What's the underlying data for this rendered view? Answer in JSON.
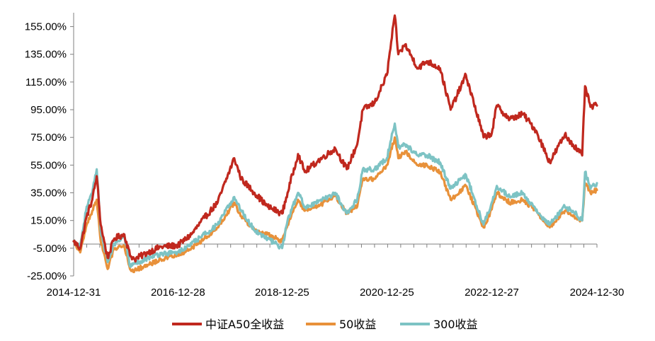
{
  "chart_data": {
    "type": "line",
    "title": "",
    "xlabel": "",
    "ylabel": "",
    "x_tick_labels": [
      "2014-12-31",
      "2016-12-28",
      "2018-12-25",
      "2020-12-25",
      "2022-12-27",
      "2024-12-30"
    ],
    "y_tick_labels": [
      "155.00%",
      "135.00%",
      "115.00%",
      "95.00%",
      "75.00%",
      "55.00%",
      "35.00%",
      "15.00%",
      "-5.00%",
      "-25.00%"
    ],
    "y_ticks": [
      155,
      135,
      115,
      95,
      75,
      55,
      35,
      15,
      -5,
      -25
    ],
    "ylim": [
      -25,
      165
    ],
    "xlim": [
      "2014-12-31",
      "2024-12-30"
    ],
    "grid": false,
    "legend_position": "bottom",
    "series": [
      {
        "name": "中证A50全收益",
        "color": "#C0281E",
        "points": [
          [
            "2014-12-31",
            0
          ],
          [
            "2015-02-15",
            -5
          ],
          [
            "2015-04-01",
            18
          ],
          [
            "2015-05-10",
            30
          ],
          [
            "2015-06-10",
            47
          ],
          [
            "2015-07-08",
            12
          ],
          [
            "2015-08-25",
            -12
          ],
          [
            "2015-10-10",
            2
          ],
          [
            "2015-12-20",
            5
          ],
          [
            "2016-01-28",
            -10
          ],
          [
            "2016-03-01",
            -13
          ],
          [
            "2016-06-01",
            -8
          ],
          [
            "2016-09-01",
            -4
          ],
          [
            "2016-12-28",
            -3
          ],
          [
            "2017-04-01",
            5
          ],
          [
            "2017-07-01",
            17
          ],
          [
            "2017-10-01",
            28
          ],
          [
            "2018-01-25",
            60
          ],
          [
            "2018-03-15",
            45
          ],
          [
            "2018-06-15",
            35
          ],
          [
            "2018-09-15",
            25
          ],
          [
            "2018-12-25",
            20
          ],
          [
            "2019-02-01",
            35
          ],
          [
            "2019-04-15",
            63
          ],
          [
            "2019-06-01",
            50
          ],
          [
            "2019-09-01",
            58
          ],
          [
            "2019-12-31",
            67
          ],
          [
            "2020-03-20",
            52
          ],
          [
            "2020-06-01",
            70
          ],
          [
            "2020-07-10",
            95
          ],
          [
            "2020-10-01",
            100
          ],
          [
            "2020-12-25",
            120
          ],
          [
            "2021-02-18",
            163
          ],
          [
            "2021-03-15",
            135
          ],
          [
            "2021-05-01",
            142
          ],
          [
            "2021-07-30",
            125
          ],
          [
            "2021-10-01",
            130
          ],
          [
            "2021-12-31",
            125
          ],
          [
            "2022-03-15",
            95
          ],
          [
            "2022-06-30",
            120
          ],
          [
            "2022-10-31",
            75
          ],
          [
            "2022-12-27",
            78
          ],
          [
            "2023-01-31",
            98
          ],
          [
            "2023-05-01",
            88
          ],
          [
            "2023-08-01",
            92
          ],
          [
            "2023-10-31",
            80
          ],
          [
            "2024-02-05",
            57
          ],
          [
            "2024-05-20",
            77
          ],
          [
            "2024-07-15",
            70
          ],
          [
            "2024-09-18",
            62
          ],
          [
            "2024-10-08",
            112
          ],
          [
            "2024-11-15",
            97
          ],
          [
            "2024-12-30",
            98
          ]
        ]
      },
      {
        "name": "50收益",
        "color": "#E8913A",
        "points": [
          [
            "2014-12-31",
            0
          ],
          [
            "2015-02-15",
            -8
          ],
          [
            "2015-04-01",
            12
          ],
          [
            "2015-05-10",
            22
          ],
          [
            "2015-06-10",
            30
          ],
          [
            "2015-07-08",
            0
          ],
          [
            "2015-08-25",
            -20
          ],
          [
            "2015-10-10",
            -5
          ],
          [
            "2015-12-20",
            -3
          ],
          [
            "2016-01-28",
            -20
          ],
          [
            "2016-03-01",
            -21
          ],
          [
            "2016-06-01",
            -17
          ],
          [
            "2016-09-01",
            -13
          ],
          [
            "2016-12-28",
            -10
          ],
          [
            "2017-04-01",
            -5
          ],
          [
            "2017-07-01",
            2
          ],
          [
            "2017-10-01",
            10
          ],
          [
            "2018-01-25",
            28
          ],
          [
            "2018-03-15",
            18
          ],
          [
            "2018-06-15",
            8
          ],
          [
            "2018-09-15",
            5
          ],
          [
            "2018-12-25",
            0
          ],
          [
            "2019-02-01",
            12
          ],
          [
            "2019-04-15",
            30
          ],
          [
            "2019-06-01",
            22
          ],
          [
            "2019-09-01",
            25
          ],
          [
            "2019-12-31",
            33
          ],
          [
            "2020-03-20",
            20
          ],
          [
            "2020-06-01",
            25
          ],
          [
            "2020-07-10",
            45
          ],
          [
            "2020-10-01",
            45
          ],
          [
            "2020-12-25",
            55
          ],
          [
            "2021-02-18",
            75
          ],
          [
            "2021-03-15",
            60
          ],
          [
            "2021-05-01",
            65
          ],
          [
            "2021-07-30",
            55
          ],
          [
            "2021-10-01",
            55
          ],
          [
            "2021-12-31",
            50
          ],
          [
            "2022-03-15",
            30
          ],
          [
            "2022-06-30",
            40
          ],
          [
            "2022-10-31",
            10
          ],
          [
            "2022-12-27",
            23
          ],
          [
            "2023-01-31",
            35
          ],
          [
            "2023-05-01",
            28
          ],
          [
            "2023-08-01",
            30
          ],
          [
            "2023-10-31",
            22
          ],
          [
            "2024-02-05",
            10
          ],
          [
            "2024-05-20",
            22
          ],
          [
            "2024-07-15",
            18
          ],
          [
            "2024-09-18",
            15
          ],
          [
            "2024-10-08",
            42
          ],
          [
            "2024-11-15",
            35
          ],
          [
            "2024-12-30",
            37
          ]
        ]
      },
      {
        "name": "300收益",
        "color": "#7DC3C4",
        "points": [
          [
            "2014-12-31",
            0
          ],
          [
            "2015-02-15",
            -3
          ],
          [
            "2015-04-01",
            25
          ],
          [
            "2015-05-10",
            35
          ],
          [
            "2015-06-10",
            52
          ],
          [
            "2015-07-08",
            8
          ],
          [
            "2015-08-25",
            -15
          ],
          [
            "2015-10-10",
            -2
          ],
          [
            "2015-12-20",
            5
          ],
          [
            "2016-01-28",
            -18
          ],
          [
            "2016-03-01",
            -16
          ],
          [
            "2016-06-01",
            -12
          ],
          [
            "2016-09-01",
            -9
          ],
          [
            "2016-12-28",
            -8
          ],
          [
            "2017-04-01",
            -2
          ],
          [
            "2017-07-01",
            5
          ],
          [
            "2017-10-01",
            12
          ],
          [
            "2018-01-25",
            32
          ],
          [
            "2018-03-15",
            22
          ],
          [
            "2018-06-15",
            8
          ],
          [
            "2018-09-15",
            2
          ],
          [
            "2018-12-25",
            -5
          ],
          [
            "2019-02-01",
            15
          ],
          [
            "2019-04-15",
            35
          ],
          [
            "2019-06-01",
            25
          ],
          [
            "2019-09-01",
            28
          ],
          [
            "2019-12-31",
            35
          ],
          [
            "2020-03-20",
            20
          ],
          [
            "2020-06-01",
            30
          ],
          [
            "2020-07-10",
            52
          ],
          [
            "2020-10-01",
            52
          ],
          [
            "2020-12-25",
            60
          ],
          [
            "2021-02-18",
            85
          ],
          [
            "2021-03-15",
            68
          ],
          [
            "2021-05-01",
            70
          ],
          [
            "2021-07-30",
            62
          ],
          [
            "2021-10-01",
            62
          ],
          [
            "2021-12-31",
            57
          ],
          [
            "2022-03-15",
            38
          ],
          [
            "2022-06-30",
            48
          ],
          [
            "2022-10-31",
            12
          ],
          [
            "2022-12-27",
            28
          ],
          [
            "2023-01-31",
            40
          ],
          [
            "2023-05-01",
            32
          ],
          [
            "2023-08-01",
            35
          ],
          [
            "2023-10-31",
            22
          ],
          [
            "2024-02-05",
            12
          ],
          [
            "2024-05-20",
            25
          ],
          [
            "2024-07-15",
            22
          ],
          [
            "2024-09-18",
            15
          ],
          [
            "2024-10-08",
            50
          ],
          [
            "2024-11-15",
            38
          ],
          [
            "2024-12-30",
            42
          ]
        ]
      }
    ]
  }
}
